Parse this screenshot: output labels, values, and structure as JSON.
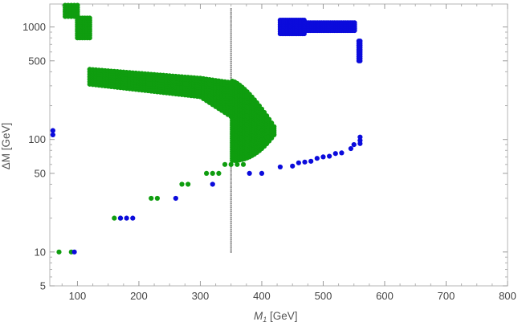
{
  "chart_data": {
    "type": "scatter",
    "title": "",
    "xlabel": {
      "main": "M",
      "sub": "1",
      "rest": " [GeV]"
    },
    "ylabel": "ΔM [GeV]",
    "x_scale": "linear",
    "y_scale": "log",
    "xlim": [
      55,
      800
    ],
    "ylim": [
      5,
      1600
    ],
    "x_ticks": [
      100,
      200,
      300,
      400,
      500,
      600,
      700,
      800
    ],
    "x_tick_labels": [
      "100",
      "200",
      "300",
      "400",
      "500",
      "600",
      "700",
      "800"
    ],
    "y_ticks": [
      5,
      10,
      50,
      100,
      500,
      1000
    ],
    "y_tick_labels": [
      "5",
      "10",
      "50",
      "100",
      "500",
      "1000"
    ],
    "y_minor_ticks": [
      6,
      7,
      8,
      9,
      20,
      30,
      40,
      60,
      70,
      80,
      90,
      200,
      300,
      400,
      600,
      700,
      800,
      900
    ],
    "colors": {
      "green": "#0f9d0f",
      "blue": "#0b0bdc",
      "gray": "#8a8a8a"
    },
    "series": [
      {
        "name": "green",
        "points": [
          [
            70,
            10
          ],
          [
            90,
            10
          ],
          [
            160,
            20
          ],
          [
            170,
            20
          ],
          [
            220,
            30
          ],
          [
            230,
            30
          ],
          [
            270,
            40
          ],
          [
            280,
            40
          ],
          [
            310,
            50
          ],
          [
            320,
            50
          ],
          [
            330,
            50
          ],
          [
            340,
            60
          ],
          [
            350,
            60
          ],
          [
            360,
            60
          ],
          [
            370,
            60
          ]
        ],
        "bands": [
          {
            "x_from": 80,
            "x_to": 100,
            "x_step": 5,
            "y_top": 1560,
            "y_bottom": 1240
          },
          {
            "x_from": 100,
            "x_to": 120,
            "x_step": 4,
            "y_top": 1200,
            "y_bottom": 800
          },
          {
            "x_from": 120,
            "x_to": 300,
            "x_step": 5,
            "y_top": 420,
            "y_bottom": 310,
            "y_top_end": 350,
            "y_bottom_end": 240
          },
          {
            "x_from": 300,
            "x_to": 350,
            "x_step": 5,
            "y_top": 350,
            "y_bottom": 240,
            "y_top_end": 320,
            "y_bottom_end": 160
          }
        ],
        "blob": {
          "x_from": 352,
          "x_to": 420,
          "x_step": 4,
          "y_bottom": 65,
          "y_top": 330
        }
      },
      {
        "name": "blue",
        "points": [
          [
            60,
            110
          ],
          [
            60,
            120
          ],
          [
            95,
            10
          ],
          [
            170,
            20
          ],
          [
            180,
            20
          ],
          [
            190,
            20
          ],
          [
            260,
            30
          ],
          [
            320,
            40
          ],
          [
            380,
            50
          ],
          [
            400,
            50
          ],
          [
            430,
            57
          ],
          [
            450,
            58
          ],
          [
            460,
            62
          ],
          [
            470,
            63
          ],
          [
            480,
            64
          ],
          [
            490,
            68
          ],
          [
            500,
            70
          ],
          [
            510,
            71
          ],
          [
            520,
            75
          ],
          [
            530,
            76
          ],
          [
            545,
            83
          ],
          [
            550,
            90
          ],
          [
            560,
            92
          ],
          [
            560,
            105
          ],
          [
            560,
            98
          ]
        ],
        "bands": [
          {
            "x_from": 430,
            "x_to": 470,
            "x_step": 3,
            "y_top": 1150,
            "y_bottom": 870
          },
          {
            "x_from": 470,
            "x_to": 550,
            "x_step": 3,
            "y_top": 1090,
            "y_bottom": 930
          },
          {
            "x_from": 558,
            "x_to": 560,
            "x_step": 2,
            "y_top": 750,
            "y_bottom": 500
          }
        ]
      },
      {
        "name": "gray",
        "marker_size": "small",
        "x": 350,
        "y_from": 10,
        "y_to": 1450
      }
    ]
  }
}
